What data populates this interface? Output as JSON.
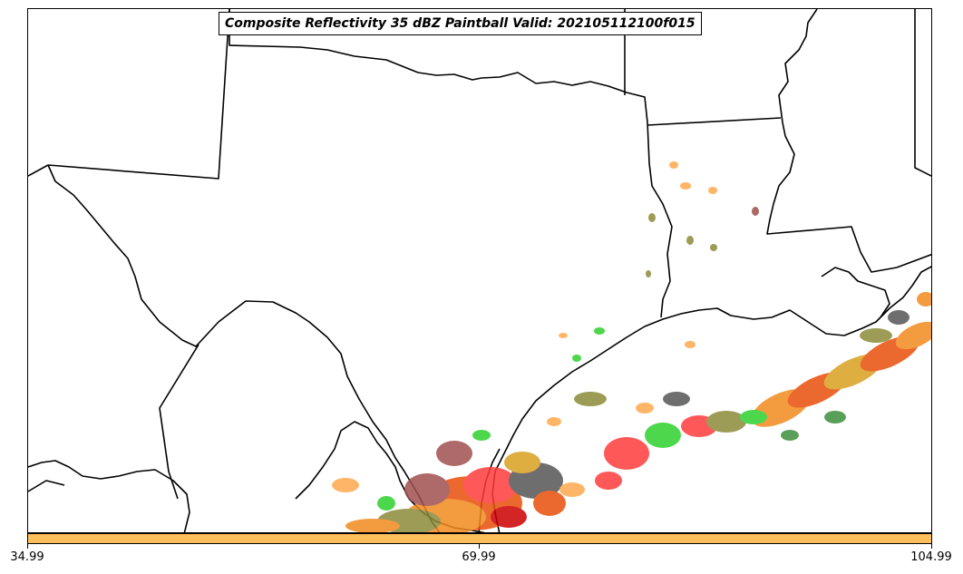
{
  "map": {
    "title": "Composite Reflectivity 35 dBZ Paintball Valid: 202105112100f015",
    "boundary_color": "#000000",
    "paintball_colors": [
      "#ff3b3b",
      "#e8500a",
      "#f28a1e",
      "#ffa94d",
      "#2fd12f",
      "#3d8f3d",
      "#8b8b3a",
      "#a05050",
      "#555555",
      "#cc0000",
      "#d9a020"
    ],
    "layers": [
      "state-boundaries",
      "coastline",
      "reflectivity-paintball"
    ]
  },
  "colorbar": {
    "color": "#ffbf5a",
    "ticks": [
      "34.99",
      "69.99",
      "104.99"
    ]
  }
}
